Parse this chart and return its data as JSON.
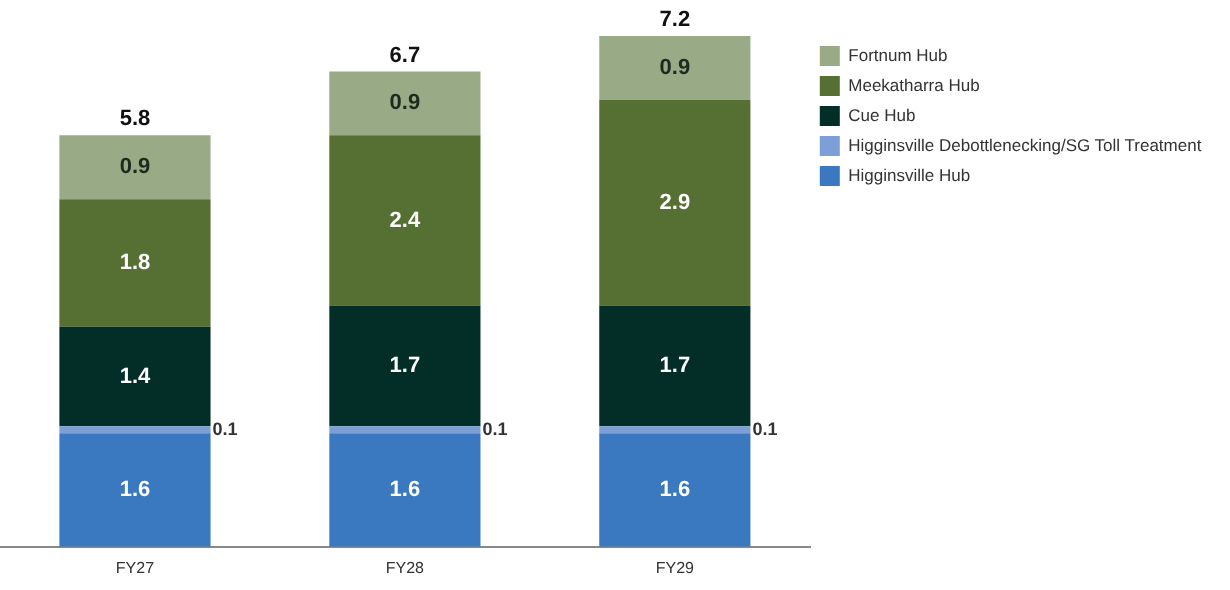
{
  "chart_data": {
    "type": "bar",
    "stacked": true,
    "categories": [
      "FY27",
      "FY28",
      "FY29"
    ],
    "series": [
      {
        "name": "Higginsville Hub",
        "color": "#3a78c0",
        "values": [
          1.6,
          1.6,
          1.6
        ]
      },
      {
        "name": "Higginsville Debottlenecking/SG Toll Treatment",
        "color": "#7b9fd6",
        "values": [
          0.1,
          0.1,
          0.1
        ]
      },
      {
        "name": "Cue Hub",
        "color": "#032d27",
        "values": [
          1.4,
          1.7,
          1.7
        ]
      },
      {
        "name": "Meekatharra Hub",
        "color": "#566f33",
        "values": [
          1.8,
          2.4,
          2.9
        ]
      },
      {
        "name": "Fortnum Hub",
        "color": "#98ab86",
        "values": [
          0.9,
          0.9,
          0.9
        ]
      }
    ],
    "totals": [
      "5.8",
      "6.7",
      "7.2"
    ],
    "data_labels": true,
    "legend": "top right",
    "grid": false
  }
}
